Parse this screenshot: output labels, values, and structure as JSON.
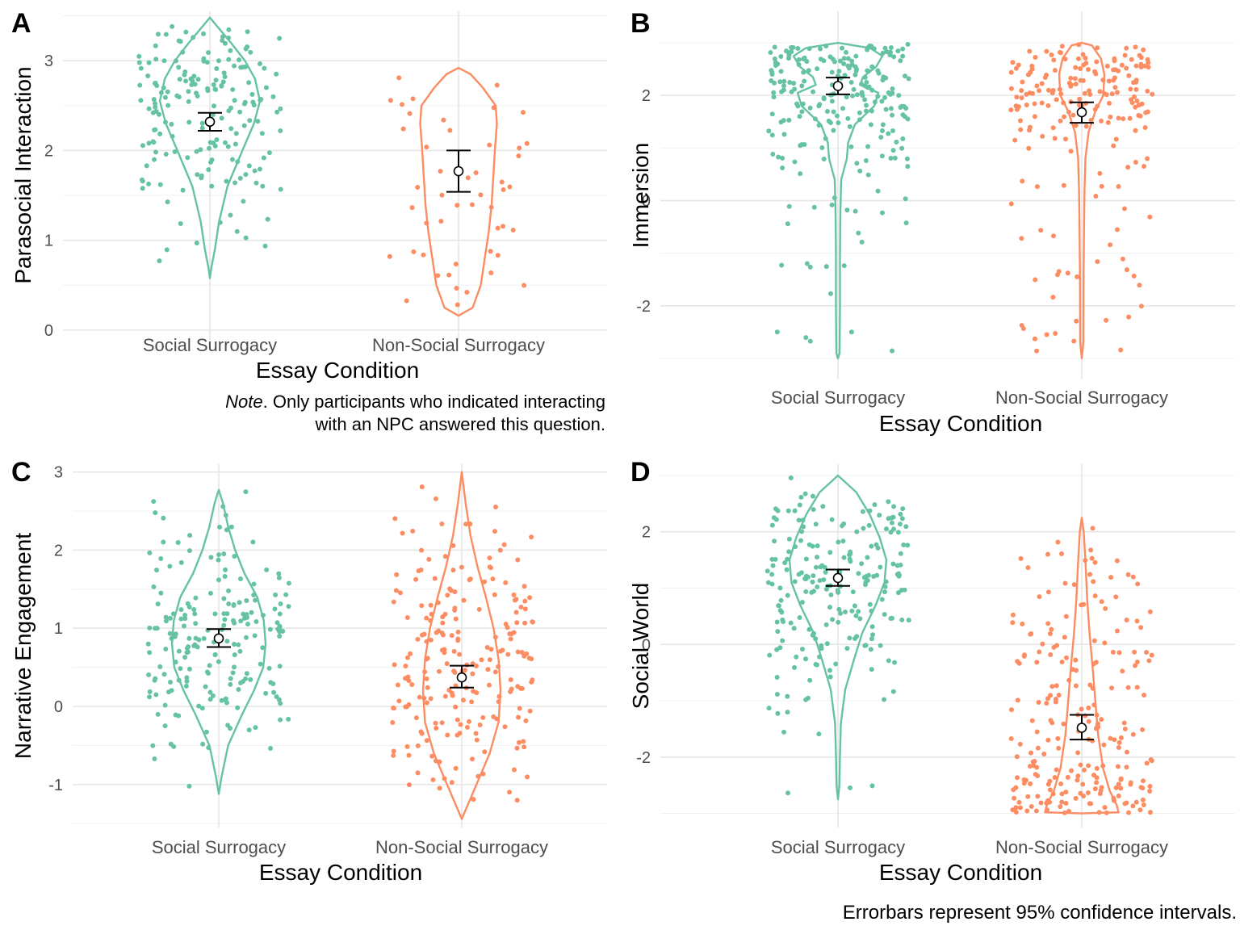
{
  "colors": {
    "social": "#66c2a5",
    "nonsocial": "#fc8d62",
    "grid": "#e6e6e6",
    "text": "#4d4d4d"
  },
  "chart_data": [
    {
      "type": "violin",
      "panel": "A",
      "title": "",
      "xlabel": "Essay Condition",
      "ylabel": "Parasocial Interaction",
      "categories": [
        "Social Surrogacy",
        "Non-Social Surrogacy"
      ],
      "ylim": [
        -0.1,
        3.55
      ],
      "yticks": [
        "0",
        "1",
        "2",
        "3"
      ],
      "ytick_values": [
        0,
        1,
        2,
        3
      ],
      "means": [
        2.32,
        1.77
      ],
      "ci": [
        [
          2.22,
          2.42
        ],
        [
          1.54,
          2.0
        ]
      ],
      "violin_range": [
        [
          0.58,
          3.48
        ],
        [
          0.16,
          2.92
        ]
      ],
      "n_points": [
        185,
        48
      ],
      "grid": true
    },
    {
      "type": "violin",
      "panel": "B",
      "title": "",
      "xlabel": "Essay Condition",
      "ylabel": "Immersion",
      "categories": [
        "Social Surrogacy",
        "Non-Social Surrogacy"
      ],
      "ylim": [
        -3.4,
        3.6
      ],
      "yticks": [
        "-2",
        "0",
        "2"
      ],
      "ytick_values": [
        -2,
        0,
        2
      ],
      "means": [
        2.18,
        1.68
      ],
      "ci": [
        [
          2.02,
          2.34
        ],
        [
          1.48,
          1.87
        ]
      ],
      "violin_range": [
        [
          -3.0,
          3.0
        ],
        [
          -3.0,
          3.0
        ]
      ],
      "n_points": [
        230,
        200
      ],
      "grid": true
    },
    {
      "type": "violin",
      "panel": "C",
      "title": "",
      "xlabel": "Essay Condition",
      "ylabel": "Narrative Engagement",
      "categories": [
        "Social Surrogacy",
        "Non-Social Surrogacy"
      ],
      "ylim": [
        -1.55,
        3.1
      ],
      "yticks": [
        "-1",
        "0",
        "1",
        "2",
        "3"
      ],
      "ytick_values": [
        -1,
        0,
        1,
        2,
        3
      ],
      "means": [
        0.87,
        0.37
      ],
      "ci": [
        [
          0.76,
          0.99
        ],
        [
          0.24,
          0.52
        ]
      ],
      "violin_range": [
        [
          -1.12,
          2.77
        ],
        [
          -1.44,
          3.0
        ]
      ],
      "n_points": [
        200,
        220
      ],
      "grid": true
    },
    {
      "type": "violin",
      "panel": "D",
      "title": "",
      "xlabel": "Essay Condition",
      "ylabel": "Social World",
      "categories": [
        "Social Surrogacy",
        "Non-Social Surrogacy"
      ],
      "ylim": [
        -3.25,
        3.2
      ],
      "yticks": [
        "-2",
        "0",
        "2"
      ],
      "ytick_values": [
        -2,
        0,
        2
      ],
      "means": [
        1.18,
        -1.48
      ],
      "ci": [
        [
          1.04,
          1.33
        ],
        [
          -1.69,
          -1.25
        ]
      ],
      "violin_range": [
        [
          -2.75,
          3.0
        ],
        [
          -3.0,
          2.25
        ]
      ],
      "n_points": [
        220,
        230
      ],
      "grid": true
    }
  ],
  "note": {
    "lead": "Note",
    "text": ". Only participants who indicated interacting with an NPC answered this question."
  },
  "caption": "Errorbars represent 95% confidence intervals."
}
